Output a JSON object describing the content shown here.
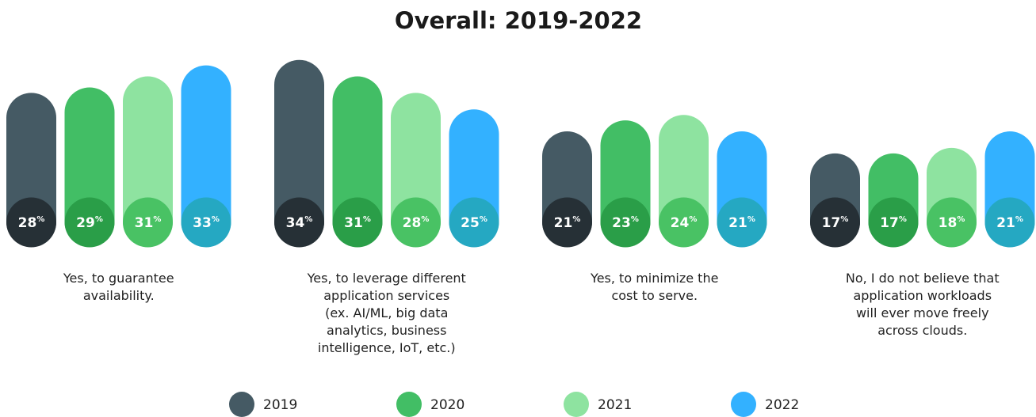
{
  "chart_data": {
    "type": "bar",
    "title": "Overall: 2019-2022",
    "unit": "%",
    "categories": [
      "Yes, to guarantee\navailability.",
      "Yes, to leverage different\napplication services\n(ex. AI/ML, big data\nanalytics, business\nintelligence, IoT, etc.)",
      "Yes, to minimize the\ncost to serve.",
      "No, I do not believe that\napplication workloads\nwill ever move freely\nacross clouds."
    ],
    "series": [
      {
        "name": "2019",
        "color": "#455a64",
        "label_color": "#263036",
        "values": [
          28,
          34,
          21,
          17
        ]
      },
      {
        "name": "2020",
        "color": "#42be65",
        "label_color": "#2a9e48",
        "values": [
          29,
          31,
          23,
          17
        ]
      },
      {
        "name": "2021",
        "color": "#8ee3a0",
        "label_color": "#49c264",
        "values": [
          31,
          28,
          24,
          18
        ]
      },
      {
        "name": "2022",
        "color": "#33b1ff",
        "label_color": "#25a8c2",
        "values": [
          33,
          25,
          21,
          21
        ]
      }
    ]
  }
}
